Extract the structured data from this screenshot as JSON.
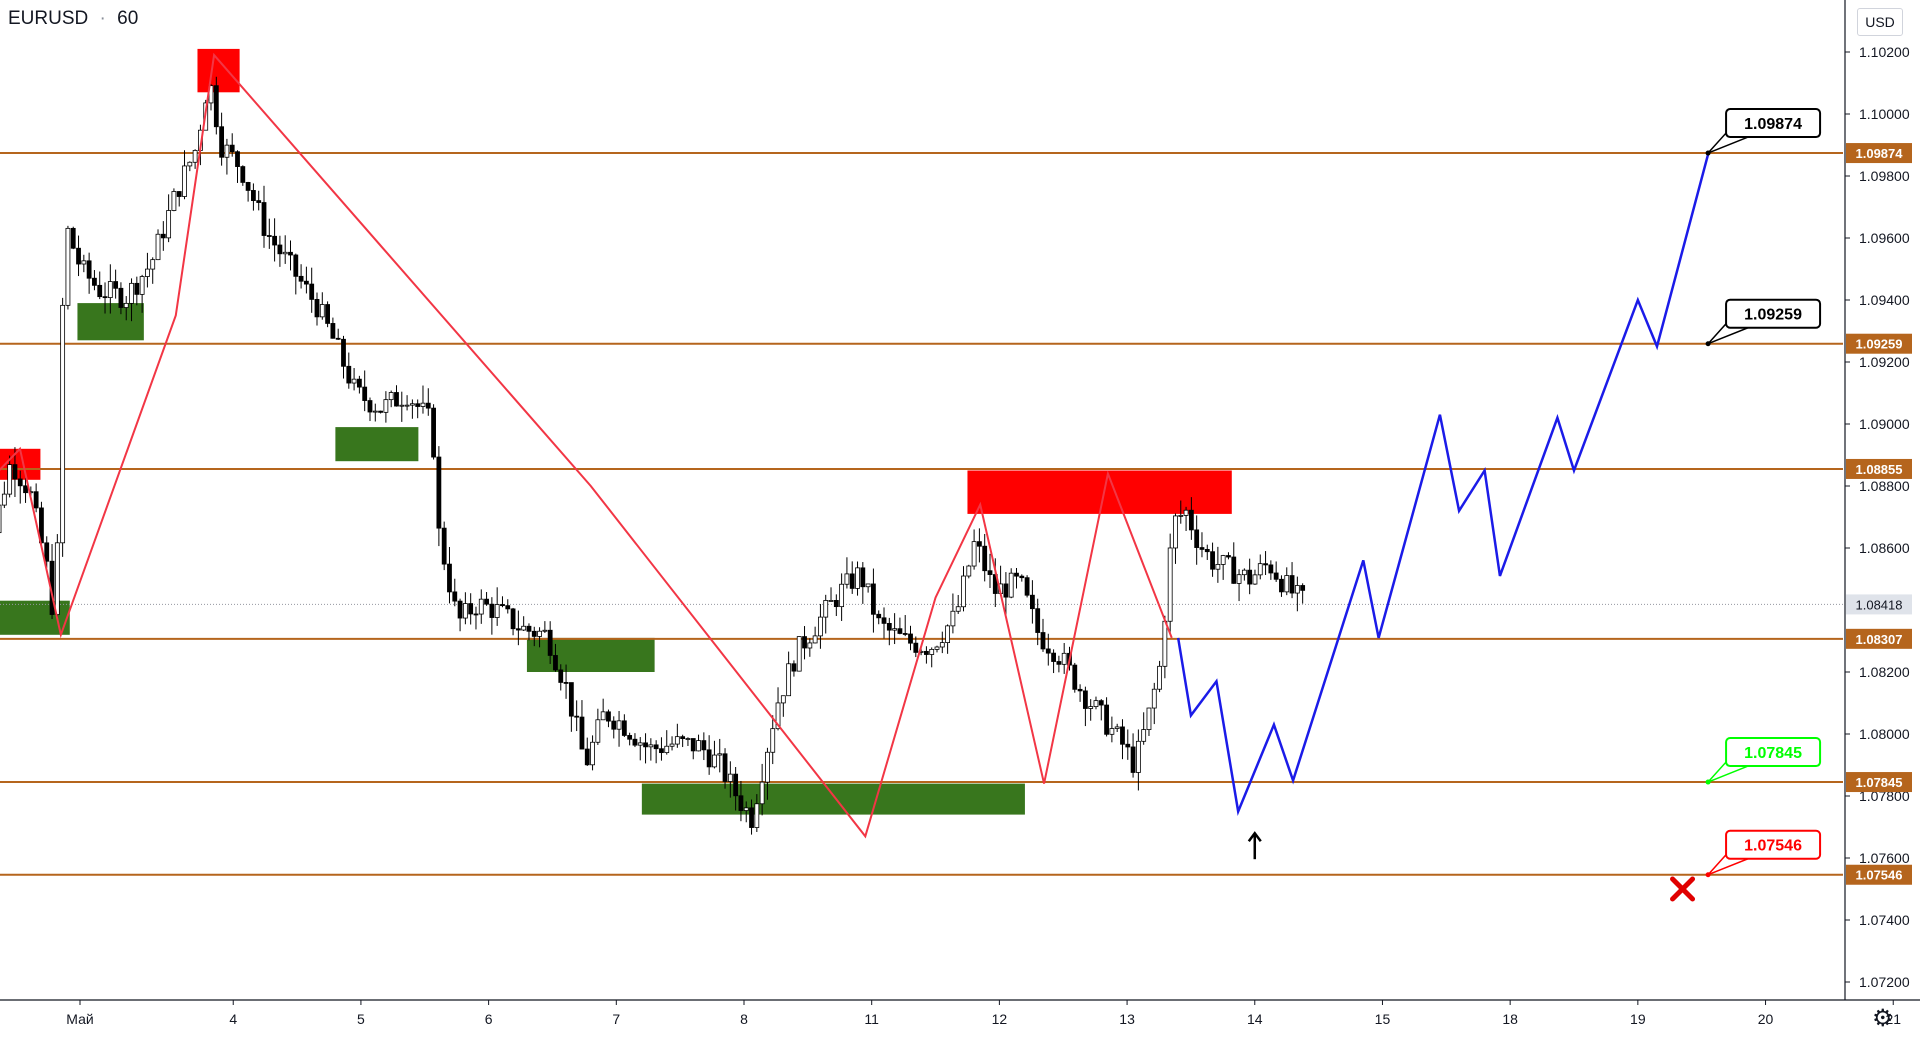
{
  "header": {
    "symbol": "EURUSD",
    "separator": "·",
    "interval": "60"
  },
  "currency_label": "USD",
  "settings_icon": "gear-icon",
  "colors": {
    "level": "#b5651d",
    "level_label_bg": "#b5651d",
    "zigzag": "#f23645",
    "projection": "#1b1be8",
    "supply_zone": "#ff0000",
    "demand_zone": "#38761d",
    "candle": "#000000",
    "target_callout_border": "#000000",
    "support_callout": "#00ff00",
    "stop_callout": "#ff0000",
    "current_price_bg": "#dfe3ea"
  },
  "chart_data": {
    "type": "line",
    "price_axis": {
      "min": 1.0713,
      "max": 1.1029,
      "ticks": [
        "1.10200",
        "1.10000",
        "1.09800",
        "1.09600",
        "1.09400",
        "1.09200",
        "1.09000",
        "1.08800",
        "1.08600",
        "1.08200",
        "1.08000",
        "1.07800",
        "1.07600",
        "1.07400",
        "1.07200"
      ]
    },
    "time_axis": {
      "labels": [
        {
          "text": "Май",
          "t": 2.8
        },
        {
          "text": "4",
          "t": 4
        },
        {
          "text": "5",
          "t": 5
        },
        {
          "text": "6",
          "t": 6
        },
        {
          "text": "7",
          "t": 7
        },
        {
          "text": "8",
          "t": 8
        },
        {
          "text": "11",
          "t": 9
        },
        {
          "text": "12",
          "t": 10
        },
        {
          "text": "13",
          "t": 11
        },
        {
          "text": "14",
          "t": 12
        },
        {
          "text": "15",
          "t": 13
        },
        {
          "text": "18",
          "t": 14
        },
        {
          "text": "19",
          "t": 15
        },
        {
          "text": "20",
          "t": 16
        },
        {
          "text": "21",
          "t": 17
        }
      ]
    },
    "horizontal_levels": [
      {
        "value": 1.09874,
        "label": "1.09874"
      },
      {
        "value": 1.09259,
        "label": "1.09259"
      },
      {
        "value": 1.08855,
        "label": "1.08855"
      },
      {
        "value": 1.08307,
        "label": "1.08307"
      },
      {
        "value": 1.07845,
        "label": "1.07845"
      },
      {
        "value": 1.07546,
        "label": "1.07546"
      }
    ],
    "current_price": {
      "value": 1.08418,
      "label": "1.08418"
    },
    "zigzag": [
      [
        2.05,
        1.088
      ],
      [
        2.33,
        1.0892
      ],
      [
        2.65,
        1.0832
      ],
      [
        3.55,
        1.0935
      ],
      [
        3.85,
        1.1019
      ],
      [
        6.8,
        1.088
      ],
      [
        8.95,
        1.0767
      ],
      [
        9.5,
        1.0844
      ],
      [
        9.85,
        1.0874
      ],
      [
        10.35,
        1.0784
      ],
      [
        10.85,
        1.0884
      ],
      [
        11.35,
        1.0831
      ]
    ],
    "projection_path": [
      [
        11.4,
        1.0831
      ],
      [
        11.5,
        1.0806
      ],
      [
        11.7,
        1.0817
      ],
      [
        11.87,
        1.0775
      ],
      [
        12.15,
        1.0803
      ],
      [
        12.3,
        1.0785
      ],
      [
        12.85,
        1.0856
      ],
      [
        12.97,
        1.0831
      ],
      [
        13.45,
        1.0903
      ],
      [
        13.6,
        1.0872
      ],
      [
        13.8,
        1.0885
      ],
      [
        13.92,
        1.0851
      ],
      [
        14.37,
        1.0902
      ],
      [
        14.5,
        1.0885
      ],
      [
        15.0,
        1.094
      ],
      [
        15.15,
        1.0925
      ],
      [
        15.55,
        1.0987
      ]
    ],
    "supply_zones": [
      {
        "t0": 2.0,
        "t1": 2.49,
        "p0": 1.0882,
        "p1": 1.0892
      },
      {
        "t0": 3.72,
        "t1": 4.05,
        "p0": 1.1007,
        "p1": 1.1021
      },
      {
        "t0": 9.75,
        "t1": 11.82,
        "p0": 1.0871,
        "p1": 1.0885
      }
    ],
    "demand_zones": [
      {
        "t0": 2.0,
        "t1": 2.72,
        "p0": 1.0832,
        "p1": 1.0843
      },
      {
        "t0": 2.78,
        "t1": 3.3,
        "p0": 1.0927,
        "p1": 1.0939
      },
      {
        "t0": 4.8,
        "t1": 5.45,
        "p0": 1.0888,
        "p1": 1.0899
      },
      {
        "t0": 6.3,
        "t1": 7.3,
        "p0": 1.082,
        "p1": 1.0831
      },
      {
        "t0": 7.2,
        "t1": 10.2,
        "p0": 1.0774,
        "p1": 1.0784
      }
    ],
    "callouts": [
      {
        "label": "1.09874",
        "anchor_t": 15.55,
        "anchor_value": 1.09874,
        "style": "target"
      },
      {
        "label": "1.09259",
        "anchor_t": 15.55,
        "anchor_value": 1.09259,
        "style": "target"
      },
      {
        "label": "1.07845",
        "anchor_t": 15.55,
        "anchor_value": 1.07845,
        "style": "support"
      },
      {
        "label": "1.07546",
        "anchor_t": 15.55,
        "anchor_value": 1.07546,
        "style": "stop"
      }
    ],
    "arrow_marker": {
      "t": 12.0,
      "value": 1.0768
    },
    "cross_marker": {
      "t": 15.35,
      "value": 1.075
    },
    "price_path": [
      [
        2.0,
        1.0876
      ],
      [
        2.15,
        1.0863
      ],
      [
        2.3,
        1.0888
      ],
      [
        2.45,
        1.0878
      ],
      [
        2.6,
        1.085
      ],
      [
        2.65,
        1.0832
      ],
      [
        2.72,
        1.0965
      ],
      [
        2.85,
        1.095
      ],
      [
        3.0,
        1.0943
      ],
      [
        3.2,
        1.0941
      ],
      [
        3.4,
        1.0952
      ],
      [
        3.6,
        1.0975
      ],
      [
        3.75,
        1.0989
      ],
      [
        3.85,
        1.1012
      ],
      [
        3.95,
        1.099
      ],
      [
        4.1,
        1.0983
      ],
      [
        4.3,
        1.0962
      ],
      [
        4.5,
        1.095
      ],
      [
        4.7,
        1.0938
      ],
      [
        4.85,
        1.0925
      ],
      [
        5.0,
        1.091
      ],
      [
        5.2,
        1.0905
      ],
      [
        5.4,
        1.091
      ],
      [
        5.6,
        1.09
      ],
      [
        5.65,
        1.0865
      ],
      [
        5.8,
        1.0836
      ],
      [
        5.95,
        1.0842
      ],
      [
        6.1,
        1.084
      ],
      [
        6.3,
        1.0834
      ],
      [
        6.5,
        1.0832
      ],
      [
        6.65,
        1.0815
      ],
      [
        6.8,
        1.079
      ],
      [
        6.95,
        1.0807
      ],
      [
        7.1,
        1.0803
      ],
      [
        7.3,
        1.0795
      ],
      [
        7.5,
        1.0797
      ],
      [
        7.7,
        1.0796
      ],
      [
        7.85,
        1.079
      ],
      [
        8.0,
        1.0779
      ],
      [
        8.1,
        1.0773
      ],
      [
        8.3,
        1.081
      ],
      [
        8.45,
        1.0826
      ],
      [
        8.6,
        1.0835
      ],
      [
        8.8,
        1.0846
      ],
      [
        8.95,
        1.0852
      ],
      [
        9.1,
        1.0835
      ],
      [
        9.3,
        1.083
      ],
      [
        9.5,
        1.0828
      ],
      [
        9.7,
        1.0838
      ],
      [
        9.85,
        1.0862
      ],
      [
        10.0,
        1.0846
      ],
      [
        10.2,
        1.0849
      ],
      [
        10.35,
        1.0832
      ],
      [
        10.5,
        1.0826
      ],
      [
        10.7,
        1.0813
      ],
      [
        10.85,
        1.0805
      ],
      [
        11.0,
        1.0797
      ],
      [
        11.1,
        1.079
      ],
      [
        11.2,
        1.0804
      ],
      [
        11.3,
        1.0822
      ],
      [
        11.4,
        1.0868
      ],
      [
        11.5,
        1.0872
      ],
      [
        11.6,
        1.0862
      ],
      [
        11.7,
        1.0856
      ],
      [
        11.85,
        1.0853
      ],
      [
        12.0,
        1.085
      ],
      [
        12.15,
        1.0855
      ],
      [
        12.3,
        1.0847
      ],
      [
        12.4,
        1.0843
      ]
    ]
  }
}
